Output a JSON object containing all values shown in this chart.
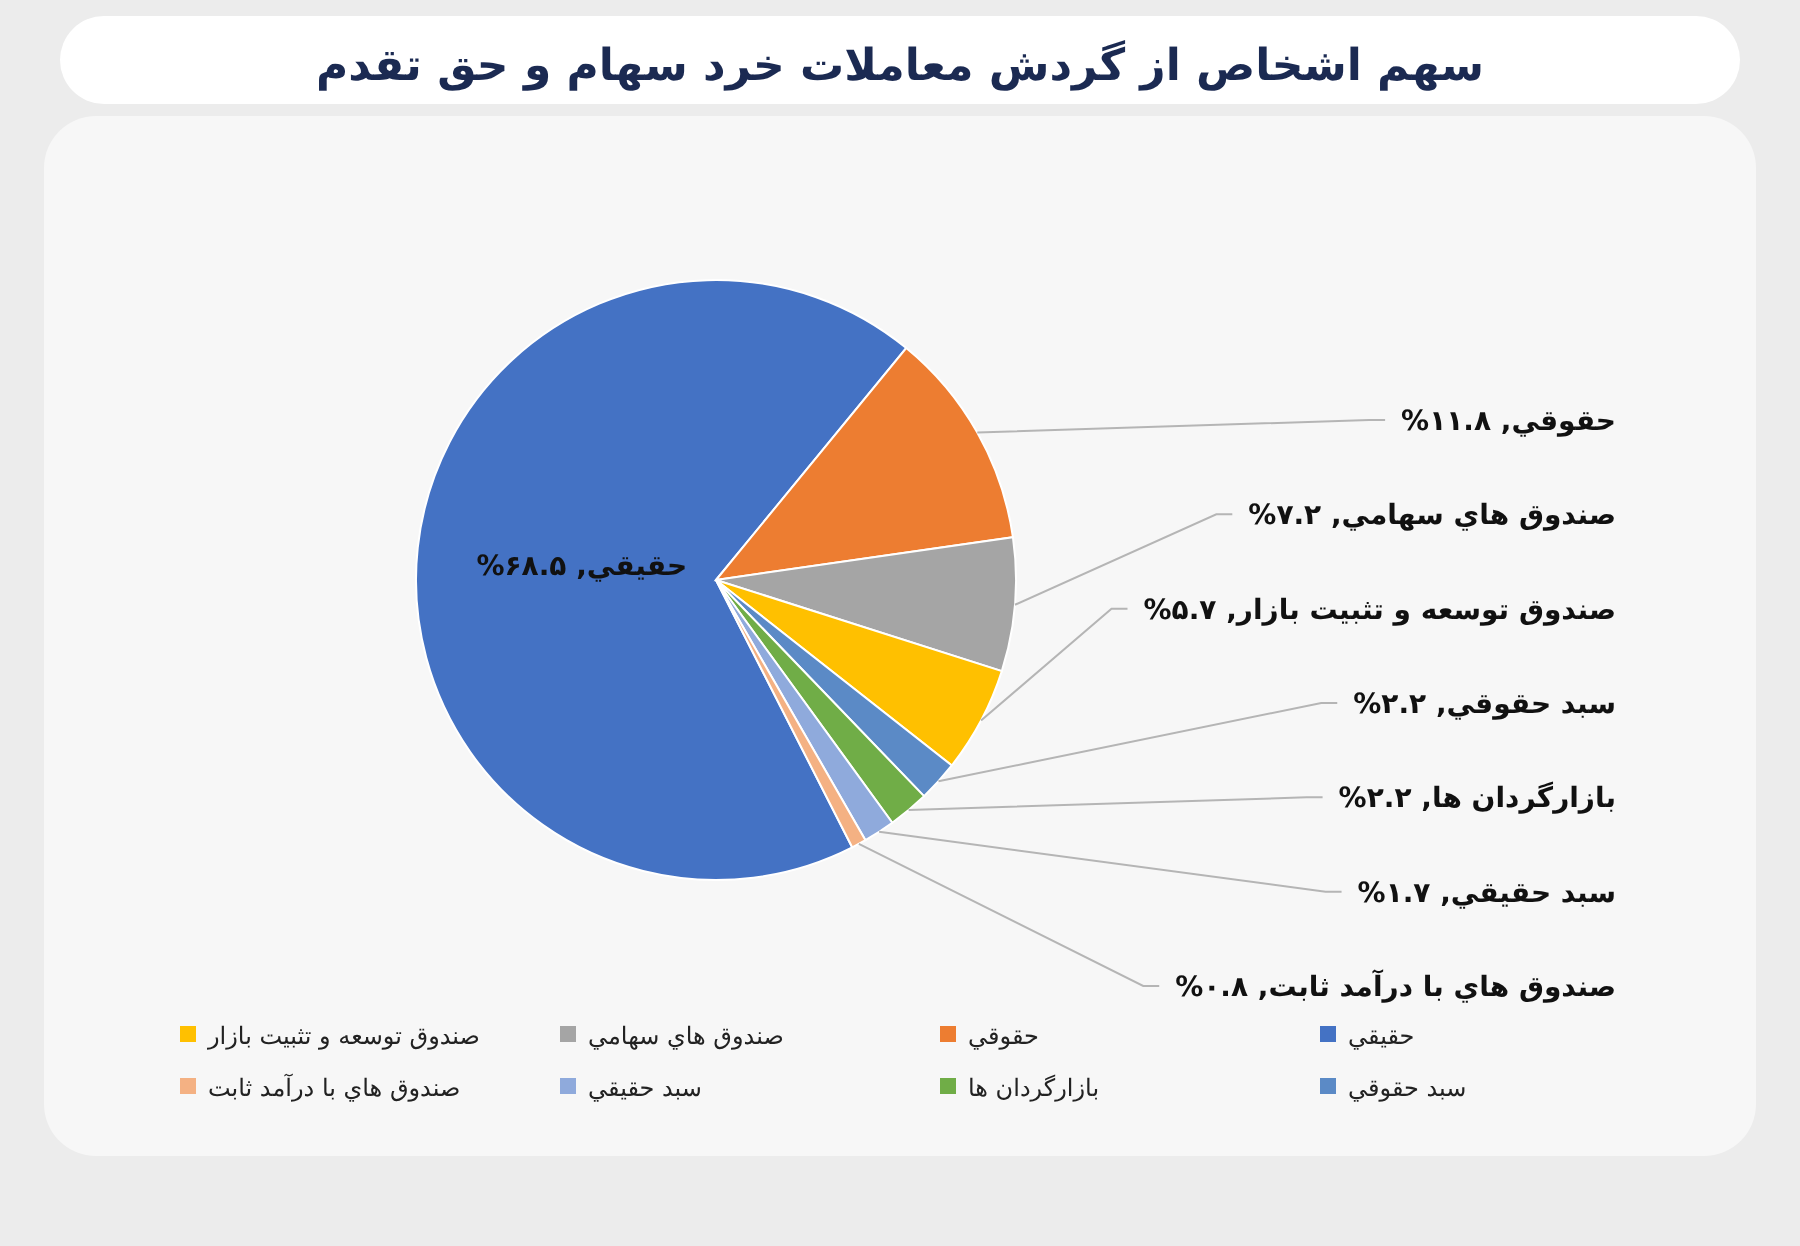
{
  "chart_data": {
    "type": "pie",
    "title": "سهم اشخاص از گردش معاملات خرد سهام و حق تقدم",
    "categories": [
      "حقيقي",
      "حقوقي",
      "صندوق هاي سهامي",
      "صندوق توسعه و تثبيت بازار",
      "سبد حقوقي",
      "بازارگردان ها",
      "سبد حقيقي",
      "صندوق هاي با درآمد ثابت"
    ],
    "values": [
      68.5,
      11.8,
      7.2,
      5.7,
      2.2,
      2.2,
      1.7,
      0.8
    ],
    "colors": [
      "#4472c4",
      "#ed7d31",
      "#a5a5a5",
      "#ffc000",
      "#5b8ac6",
      "#70ad47",
      "#8faadc",
      "#f4b183"
    ],
    "value_labels": [
      "حقيقي, ۶۸.۵%",
      "حقوقي, ۱۱.۸%",
      "صندوق هاي سهامي, ۷.۲%",
      "صندوق توسعه و تثبيت بازار, ۵.۷%",
      "سبد حقوقي, ۲.۲%",
      "بازارگردان ها, ۲.۲%",
      "سبد حقيقي, ۱.۷%",
      "صندوق هاي با درآمد ثابت, ۰.۸%"
    ],
    "legend": "bottom"
  }
}
